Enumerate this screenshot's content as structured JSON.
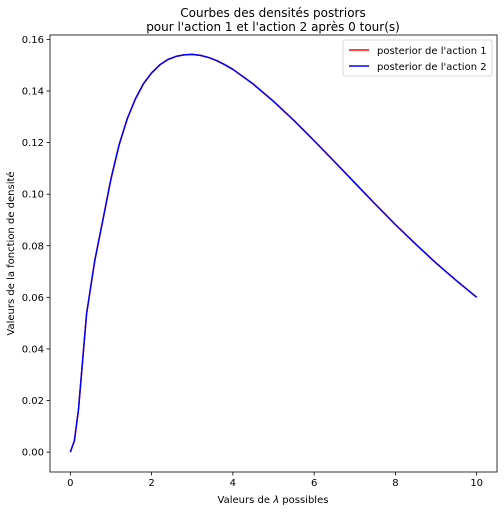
{
  "chart_data": {
    "type": "line",
    "title_line1": "Courbes des densités postriors",
    "title_line2": "pour l'action 1 et l'action 2 après 0 tour(s)",
    "xlabel_prefix": "Valeurs de ",
    "xlabel_symbol": "λ",
    "xlabel_suffix": " possibles",
    "ylabel": "Valeurs de la fonction de densité",
    "xlim": [
      -0.5,
      10.5
    ],
    "ylim": [
      -0.0077,
      0.1617
    ],
    "xticks": [
      0,
      2,
      4,
      6,
      8,
      10
    ],
    "xtick_labels": [
      "0",
      "2",
      "4",
      "6",
      "8",
      "10"
    ],
    "yticks": [
      0.0,
      0.02,
      0.04,
      0.06,
      0.08,
      0.1,
      0.12,
      0.14,
      0.16
    ],
    "ytick_labels": [
      "0.00",
      "0.02",
      "0.04",
      "0.06",
      "0.08",
      "0.10",
      "0.12",
      "0.14",
      "0.16"
    ],
    "grid": false,
    "legend_position": "top-right",
    "x": [
      0,
      0.1,
      0.2,
      0.4,
      0.6,
      0.8,
      1.0,
      1.2,
      1.4,
      1.6,
      1.8,
      2.0,
      2.2,
      2.4,
      2.6,
      2.8,
      3.0,
      3.2,
      3.4,
      3.6,
      3.8,
      4.0,
      4.5,
      5.0,
      5.5,
      6.0,
      6.5,
      7.0,
      7.5,
      8.0,
      8.5,
      9.0,
      9.5,
      10.0
    ],
    "series": [
      {
        "name": "posterior de l'action 1",
        "color": "#ff0000",
        "values": [
          0.0,
          0.0044,
          0.0164,
          0.0536,
          0.0741,
          0.0899,
          0.1059,
          0.1191,
          0.1292,
          0.1369,
          0.1428,
          0.147,
          0.1501,
          0.1522,
          0.1534,
          0.154,
          0.1542,
          0.1538,
          0.153,
          0.1518,
          0.1502,
          0.1484,
          0.1427,
          0.136,
          0.1286,
          0.1207,
          0.1126,
          0.1044,
          0.0962,
          0.0882,
          0.0806,
          0.0733,
          0.0665,
          0.06
        ]
      },
      {
        "name": "posterior de l'action 2",
        "color": "#0000ff",
        "values": [
          0.0,
          0.0044,
          0.0164,
          0.0536,
          0.0741,
          0.0899,
          0.1059,
          0.1191,
          0.1292,
          0.1369,
          0.1428,
          0.147,
          0.1501,
          0.1522,
          0.1534,
          0.154,
          0.1542,
          0.1538,
          0.153,
          0.1518,
          0.1502,
          0.1484,
          0.1427,
          0.136,
          0.1286,
          0.1207,
          0.1126,
          0.1044,
          0.0962,
          0.0882,
          0.0806,
          0.0733,
          0.0665,
          0.06
        ]
      }
    ]
  }
}
